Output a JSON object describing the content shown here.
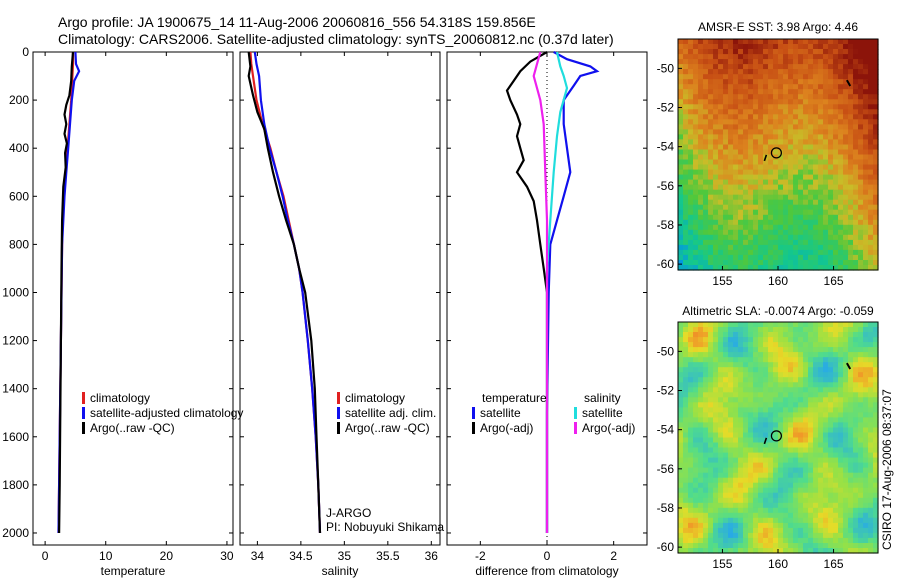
{
  "header": {
    "line1": "Argo profile: JA 1900675_14 11-Aug-2006 20060816_556 54.318S 159.856E",
    "line2": "Climatology: CARS2006. Satellite-adjusted climatology: synTS_20060812.nc (0.37d later)"
  },
  "credit": "CSIRO 17-Aug-2006 08:37:07",
  "colors": {
    "red": "#e02020",
    "blue": "#1010ee",
    "black": "#000000",
    "cyan": "#20dddd",
    "magenta": "#ee20ee"
  },
  "chart_data": [
    {
      "type": "line",
      "id": "temperature",
      "xlabel": "temperature",
      "xlim": [
        -2,
        31
      ],
      "ylim": [
        2050,
        0
      ],
      "xticks": [
        0,
        10,
        20,
        30
      ],
      "yticks": [
        0,
        200,
        400,
        600,
        800,
        1000,
        1200,
        1400,
        1600,
        1800,
        2000
      ],
      "legend": [
        "climatology",
        "satellite-adjusted climatology",
        "Argo(..raw -QC)"
      ],
      "series": [
        {
          "name": "climatology",
          "color": "red",
          "points": [
            [
              4.6,
              0
            ],
            [
              4.6,
              50
            ],
            [
              4.5,
              100
            ],
            [
              4.3,
              200
            ],
            [
              4.0,
              300
            ],
            [
              3.7,
              400
            ],
            [
              3.4,
              500
            ],
            [
              3.1,
              600
            ],
            [
              2.9,
              700
            ],
            [
              2.8,
              800
            ],
            [
              2.7,
              1000
            ],
            [
              2.6,
              1200
            ],
            [
              2.5,
              1400
            ],
            [
              2.4,
              1600
            ],
            [
              2.3,
              1800
            ],
            [
              2.2,
              2000
            ]
          ]
        },
        {
          "name": "satellite-adjusted climatology",
          "color": "blue",
          "points": [
            [
              5.0,
              0
            ],
            [
              5.1,
              50
            ],
            [
              5.6,
              80
            ],
            [
              4.8,
              120
            ],
            [
              4.4,
              200
            ],
            [
              4.1,
              300
            ],
            [
              3.8,
              400
            ],
            [
              3.5,
              500
            ],
            [
              3.2,
              600
            ],
            [
              3.0,
              700
            ],
            [
              2.8,
              800
            ],
            [
              2.7,
              1000
            ],
            [
              2.6,
              1200
            ],
            [
              2.5,
              1400
            ],
            [
              2.4,
              1600
            ],
            [
              2.3,
              1800
            ],
            [
              2.2,
              2000
            ]
          ]
        },
        {
          "name": "Argo(..raw -QC)",
          "color": "black",
          "points": [
            [
              4.6,
              0
            ],
            [
              4.4,
              60
            ],
            [
              4.3,
              120
            ],
            [
              4.0,
              180
            ],
            [
              3.5,
              220
            ],
            [
              3.2,
              260
            ],
            [
              3.5,
              300
            ],
            [
              3.2,
              340
            ],
            [
              3.6,
              380
            ],
            [
              3.3,
              420
            ],
            [
              3.4,
              480
            ],
            [
              3.0,
              560
            ],
            [
              2.8,
              700
            ],
            [
              2.7,
              900
            ],
            [
              2.6,
              1200
            ],
            [
              2.5,
              1500
            ],
            [
              2.4,
              1800
            ],
            [
              2.3,
              2000
            ]
          ]
        }
      ]
    },
    {
      "type": "line",
      "id": "salinity",
      "xlabel": "salinity",
      "xlim": [
        33.8,
        36.1
      ],
      "ylim": [
        2050,
        0
      ],
      "xticks": [
        34,
        34.5,
        35,
        35.5,
        36
      ],
      "yticks": [
        0,
        200,
        400,
        600,
        800,
        1000,
        1200,
        1400,
        1600,
        1800,
        2000
      ],
      "legend": [
        "climatology",
        "satellite adj. clim.",
        "Argo(..raw -QC)"
      ],
      "annotation": [
        "J-ARGO",
        "PI: Nobuyuki Shikama"
      ],
      "series": [
        {
          "name": "climatology",
          "color": "red",
          "points": [
            [
              33.92,
              0
            ],
            [
              33.93,
              50
            ],
            [
              33.95,
              100
            ],
            [
              33.99,
              200
            ],
            [
              34.06,
              300
            ],
            [
              34.15,
              400
            ],
            [
              34.22,
              500
            ],
            [
              34.3,
              600
            ],
            [
              34.36,
              700
            ],
            [
              34.42,
              800
            ],
            [
              34.48,
              900
            ],
            [
              34.52,
              1000
            ],
            [
              34.58,
              1200
            ],
            [
              34.63,
              1400
            ],
            [
              34.67,
              1600
            ],
            [
              34.7,
              1800
            ],
            [
              34.72,
              2000
            ]
          ]
        },
        {
          "name": "satellite adj. clim.",
          "color": "blue",
          "points": [
            [
              33.97,
              0
            ],
            [
              33.99,
              50
            ],
            [
              34.02,
              100
            ],
            [
              34.04,
              200
            ],
            [
              34.08,
              300
            ],
            [
              34.14,
              400
            ],
            [
              34.22,
              500
            ],
            [
              34.29,
              600
            ],
            [
              34.35,
              700
            ],
            [
              34.42,
              800
            ],
            [
              34.48,
              900
            ],
            [
              34.52,
              1000
            ],
            [
              34.58,
              1200
            ],
            [
              34.63,
              1400
            ],
            [
              34.67,
              1600
            ],
            [
              34.7,
              1800
            ],
            [
              34.72,
              2000
            ]
          ]
        },
        {
          "name": "Argo(..raw -QC)",
          "color": "black",
          "points": [
            [
              33.9,
              0
            ],
            [
              33.92,
              60
            ],
            [
              33.9,
              100
            ],
            [
              33.95,
              180
            ],
            [
              34.0,
              250
            ],
            [
              34.08,
              320
            ],
            [
              34.12,
              400
            ],
            [
              34.18,
              500
            ],
            [
              34.25,
              600
            ],
            [
              34.33,
              700
            ],
            [
              34.42,
              800
            ],
            [
              34.48,
              900
            ],
            [
              34.55,
              1000
            ],
            [
              34.62,
              1200
            ],
            [
              34.66,
              1400
            ],
            [
              34.68,
              1600
            ],
            [
              34.7,
              1800
            ],
            [
              34.72,
              2000
            ]
          ]
        }
      ]
    },
    {
      "type": "line",
      "id": "difference",
      "xlabel": "difference from climatology",
      "xlim": [
        -3,
        3
      ],
      "ylim": [
        2050,
        0
      ],
      "xticks": [
        -2,
        0,
        2
      ],
      "yticks": [
        0,
        200,
        400,
        600,
        800,
        1000,
        1200,
        1400,
        1600,
        1800,
        2000
      ],
      "legend_groups": [
        {
          "heading": "temperature",
          "items": [
            "satellite",
            "Argo(-adj)"
          ]
        },
        {
          "heading": "salinity",
          "items": [
            "satellite",
            "Argo(-adj)"
          ]
        }
      ],
      "series": [
        {
          "name": "temperature satellite",
          "color": "blue",
          "points": [
            [
              0.2,
              0
            ],
            [
              0.6,
              30
            ],
            [
              1.3,
              60
            ],
            [
              1.5,
              80
            ],
            [
              1.0,
              100
            ],
            [
              0.8,
              140
            ],
            [
              0.5,
              200
            ],
            [
              0.5,
              300
            ],
            [
              0.6,
              400
            ],
            [
              0.7,
              500
            ],
            [
              0.5,
              600
            ],
            [
              0.3,
              700
            ],
            [
              0.1,
              800
            ],
            [
              0.05,
              1000
            ],
            [
              0.0,
              1500
            ],
            [
              0.0,
              2000
            ]
          ]
        },
        {
          "name": "temperature Argo(-adj)",
          "color": "black",
          "points": [
            [
              0.0,
              0
            ],
            [
              -0.5,
              40
            ],
            [
              -0.8,
              80
            ],
            [
              -1.0,
              120
            ],
            [
              -1.2,
              160
            ],
            [
              -1.1,
              200
            ],
            [
              -0.9,
              260
            ],
            [
              -0.8,
              300
            ],
            [
              -0.9,
              350
            ],
            [
              -0.8,
              400
            ],
            [
              -0.7,
              450
            ],
            [
              -0.9,
              500
            ],
            [
              -0.6,
              560
            ],
            [
              -0.4,
              620
            ],
            [
              -0.3,
              700
            ],
            [
              -0.2,
              800
            ],
            [
              -0.1,
              900
            ],
            [
              0.0,
              1000
            ],
            [
              0.0,
              2000
            ]
          ]
        },
        {
          "name": "salinity satellite",
          "color": "cyan",
          "points": [
            [
              0.3,
              0
            ],
            [
              0.4,
              60
            ],
            [
              0.5,
              100
            ],
            [
              0.6,
              150
            ],
            [
              0.4,
              250
            ],
            [
              0.3,
              350
            ],
            [
              0.2,
              500
            ],
            [
              0.1,
              700
            ],
            [
              0.0,
              900
            ],
            [
              0.0,
              2000
            ]
          ]
        },
        {
          "name": "salinity Argo(-adj)",
          "color": "magenta",
          "points": [
            [
              -0.2,
              0
            ],
            [
              -0.3,
              50
            ],
            [
              -0.4,
              100
            ],
            [
              -0.2,
              200
            ],
            [
              -0.1,
              300
            ],
            [
              -0.05,
              500
            ],
            [
              0.0,
              700
            ],
            [
              0.0,
              2000
            ]
          ]
        }
      ]
    },
    {
      "type": "heatmap",
      "id": "sst_map",
      "title": "AMSR-E SST: 3.98 Argo: 4.46",
      "xlim": [
        151,
        169
      ],
      "ylim": [
        -60.3,
        -48.5
      ],
      "xticks": [
        155,
        160,
        165
      ],
      "yticks": [
        -50,
        -52,
        -54,
        -56,
        -58,
        -60
      ],
      "marker": [
        159.856,
        -54.318
      ]
    },
    {
      "type": "heatmap",
      "id": "sla_map",
      "title": "Altimetric SLA: -0.0074 Argo: -0.059",
      "xlim": [
        151,
        169
      ],
      "ylim": [
        -60.3,
        -48.5
      ],
      "xticks": [
        155,
        160,
        165
      ],
      "yticks": [
        -50,
        -52,
        -54,
        -56,
        -58,
        -60
      ],
      "marker": [
        159.856,
        -54.318
      ]
    }
  ]
}
